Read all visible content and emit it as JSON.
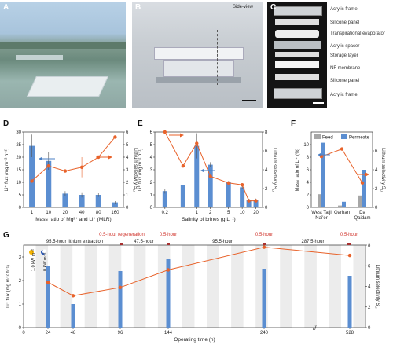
{
  "panels": {
    "A": {
      "label": "A"
    },
    "B": {
      "label": "B",
      "note": "Side-view"
    },
    "C": {
      "label": "C",
      "parts": [
        "Acrylic frame",
        "Silicone panel",
        "Transpirational evaporator",
        "Acrylic spacer",
        "Storage layer",
        "NF membrane",
        "Silicone panel",
        "Acrylic frame"
      ]
    },
    "D": {
      "label": "D"
    },
    "E": {
      "label": "E"
    },
    "F": {
      "label": "F"
    },
    "G": {
      "label": "G"
    }
  },
  "colors": {
    "bar": "#5b8ed1",
    "line": "#e8622a",
    "feed": "#a7a7a7",
    "arrow_blue": "#4a7fc4",
    "regen": "#d0342c"
  },
  "chart_data": [
    {
      "panel": "D",
      "type": "bar",
      "categories": [
        "1",
        "10",
        "20",
        "40",
        "80",
        "160"
      ],
      "xlabel": "Mass ratio of Mg²⁺ and Li⁺ (MLR)",
      "ylabel": "Li⁺ flux (mg m⁻² h⁻¹)",
      "y2label": "Lithium selectivity S",
      "ylim": [
        0,
        30
      ],
      "yticks": [
        0,
        5,
        10,
        15,
        20,
        25,
        30
      ],
      "y2lim": [
        0,
        6
      ],
      "y2ticks": [
        0,
        1,
        2,
        3,
        4,
        5,
        6
      ],
      "bars": [
        24.5,
        18.5,
        5.5,
        5,
        5,
        2
      ],
      "bar_err": [
        4.5,
        3.5,
        1,
        1,
        0.8,
        0.5
      ],
      "line": [
        2.1,
        3.3,
        2.9,
        3.2,
        4.0,
        5.6
      ],
      "line_err": [
        0,
        0,
        0,
        0.8,
        0,
        0
      ]
    },
    {
      "panel": "E",
      "type": "bar",
      "categories": [
        "0.2",
        "1",
        "2",
        "5",
        "10",
        "20"
      ],
      "xlabel": "Salinity of brines (g L⁻¹)",
      "ylabel": "Li⁺ flux (mg m⁻² h⁻¹)",
      "y2label": "Lithium selectivity S",
      "ylim": [
        0,
        6
      ],
      "yticks": [
        0,
        1,
        2,
        3,
        4,
        5,
        6
      ],
      "y2lim": [
        0,
        8
      ],
      "y2ticks": [
        0,
        2,
        4,
        6,
        8
      ],
      "x": [
        0.2,
        0.5,
        1,
        2,
        5,
        10,
        14,
        20
      ],
      "bars": [
        1.3,
        1.8,
        4.9,
        3.4,
        2.0,
        1.6,
        0.6,
        0.6
      ],
      "bar_err": [
        0.2,
        0,
        1.0,
        0.2,
        0.1,
        0.1,
        0.1,
        0.1
      ],
      "line": [
        8.0,
        4.4,
        6.8,
        3.3,
        2.6,
        2.4,
        0.7,
        0.7
      ]
    },
    {
      "panel": "F",
      "type": "bar",
      "categories": [
        "West Taiji Nai'er",
        "Qarhan",
        "Da Qaidam"
      ],
      "ylabel": "Mass ratio of Li⁺ (%)",
      "y2label": "Lithium selectivity S",
      "ylim": [
        0,
        12
      ],
      "yticks": [
        0,
        2,
        4,
        6,
        8,
        10
      ],
      "y2lim": [
        0,
        8
      ],
      "y2ticks": [
        0,
        2,
        4,
        6
      ],
      "series": [
        {
          "name": "Feed",
          "values": [
            2.1,
            0.3,
            1.9
          ]
        },
        {
          "name": "Permeate",
          "values": [
            10.3,
            0.9,
            6.0
          ]
        }
      ],
      "line": [
        5.4,
        6.2,
        2.6
      ]
    },
    {
      "panel": "G",
      "type": "bar",
      "xlabel": "Operating time (h)",
      "ylabel": "Li⁺ flux (mg m⁻² h⁻¹)",
      "y2label": "Lithium selectivity S",
      "xticks": [
        "0",
        "24",
        "48",
        "96",
        "144",
        "240",
        "528"
      ],
      "ylim": [
        0,
        3.5
      ],
      "yticks": [
        0,
        1,
        2,
        3
      ],
      "y2lim": [
        0,
        8
      ],
      "y2ticks": [
        0,
        2,
        4,
        6,
        8
      ],
      "bars": [
        2.6,
        1.0,
        2.4,
        2.9,
        2.5,
        2.2
      ],
      "line": [
        4.4,
        3.1,
        3.9,
        5.6,
        7.8,
        7.0
      ],
      "annotations": {
        "sun": "1.0 kW m⁻²",
        "moon": "0 kW m⁻²",
        "phases": [
          "95.5-hour lithium extraction",
          "47.5-hour",
          "95.5-hour",
          "287.5-hour"
        ],
        "regen": [
          "0.5-hour regeneration",
          "0.5-hour",
          "0.5-hour",
          "0.5-hour"
        ]
      }
    }
  ]
}
